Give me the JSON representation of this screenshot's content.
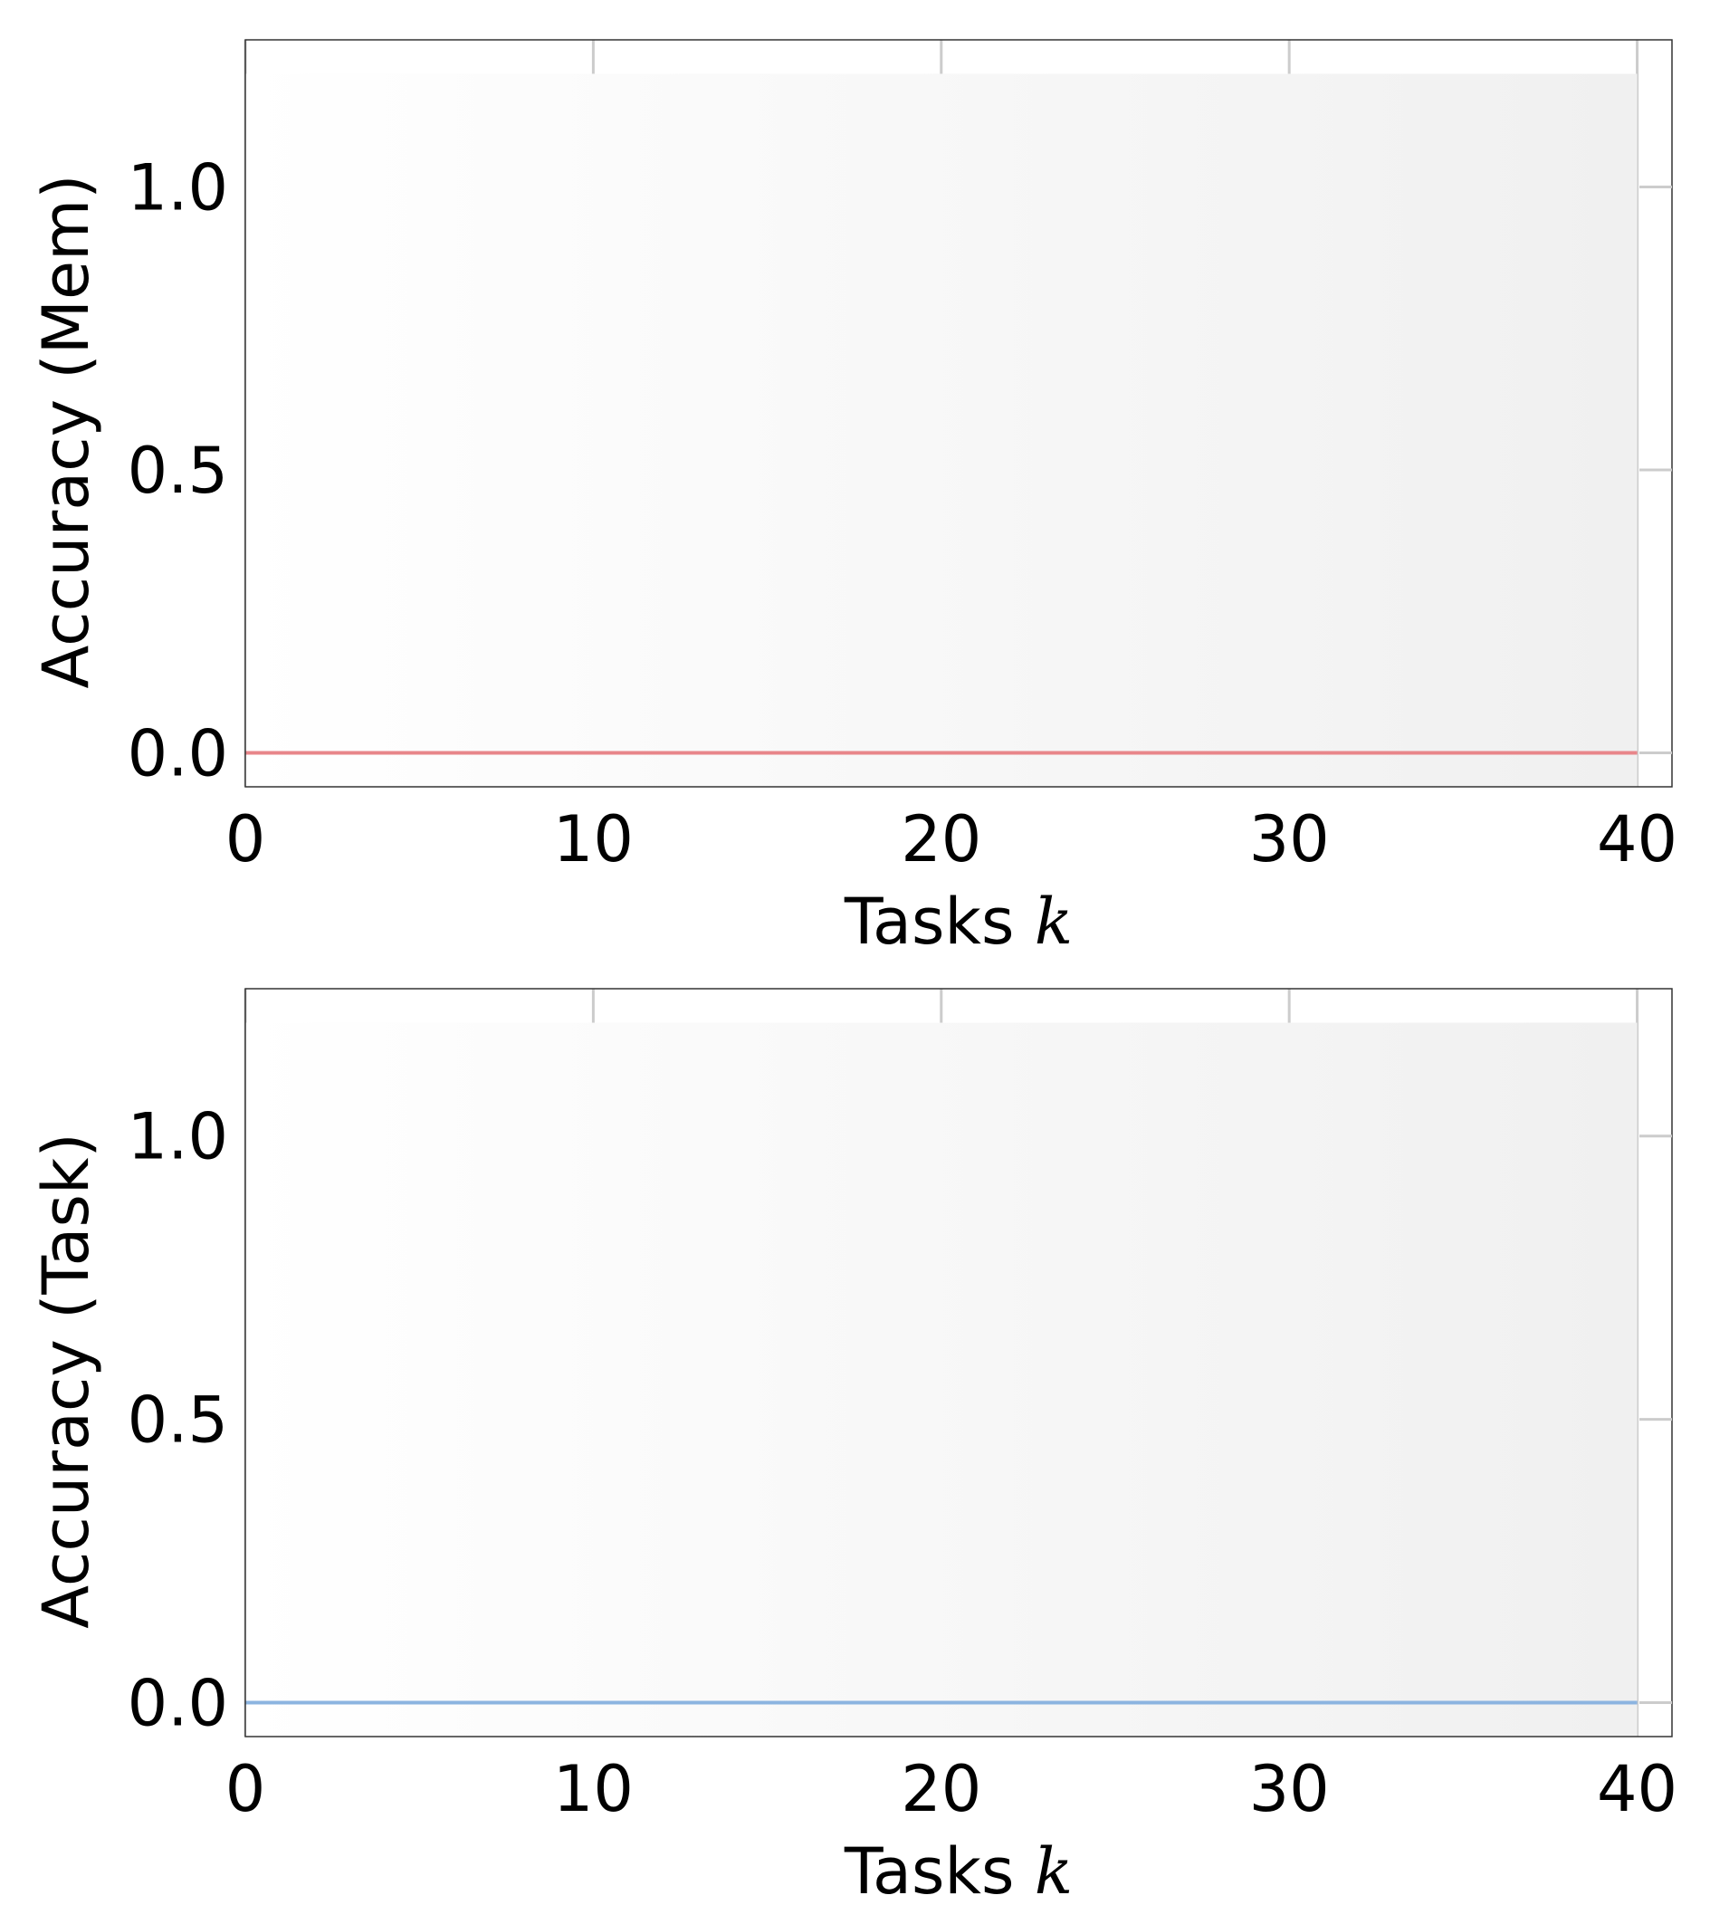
{
  "chart_data": [
    {
      "type": "line",
      "xlabel_text": "Tasks",
      "xlabel_var": "k",
      "ylabel": "Accuracy (Mem)",
      "xlim": [
        0,
        41
      ],
      "ylim": [
        -0.06,
        1.26
      ],
      "xticks": [
        0,
        10,
        20,
        30,
        40
      ],
      "xtick_labels": [
        "0",
        "10",
        "20",
        "30",
        "40"
      ],
      "yticks": [
        0.0,
        0.5,
        1.0
      ],
      "ytick_labels": [
        "0.0",
        "0.5",
        "1.0"
      ],
      "grid": "vertical",
      "series": [
        {
          "color": "#e8868a",
          "x": [
            0,
            40
          ],
          "y": [
            0.0,
            0.0
          ]
        }
      ]
    },
    {
      "type": "line",
      "xlabel_text": "Tasks",
      "xlabel_var": "k",
      "ylabel": "Accuracy (Task)",
      "xlim": [
        0,
        41
      ],
      "ylim": [
        -0.06,
        1.26
      ],
      "xticks": [
        0,
        10,
        20,
        30,
        40
      ],
      "xtick_labels": [
        "0",
        "10",
        "20",
        "30",
        "40"
      ],
      "yticks": [
        0.0,
        0.5,
        1.0
      ],
      "ytick_labels": [
        "0.0",
        "0.5",
        "1.0"
      ],
      "grid": "vertical",
      "series": [
        {
          "color": "#8cb4e0",
          "x": [
            0,
            40
          ],
          "y": [
            0.0,
            0.0
          ]
        }
      ]
    }
  ]
}
